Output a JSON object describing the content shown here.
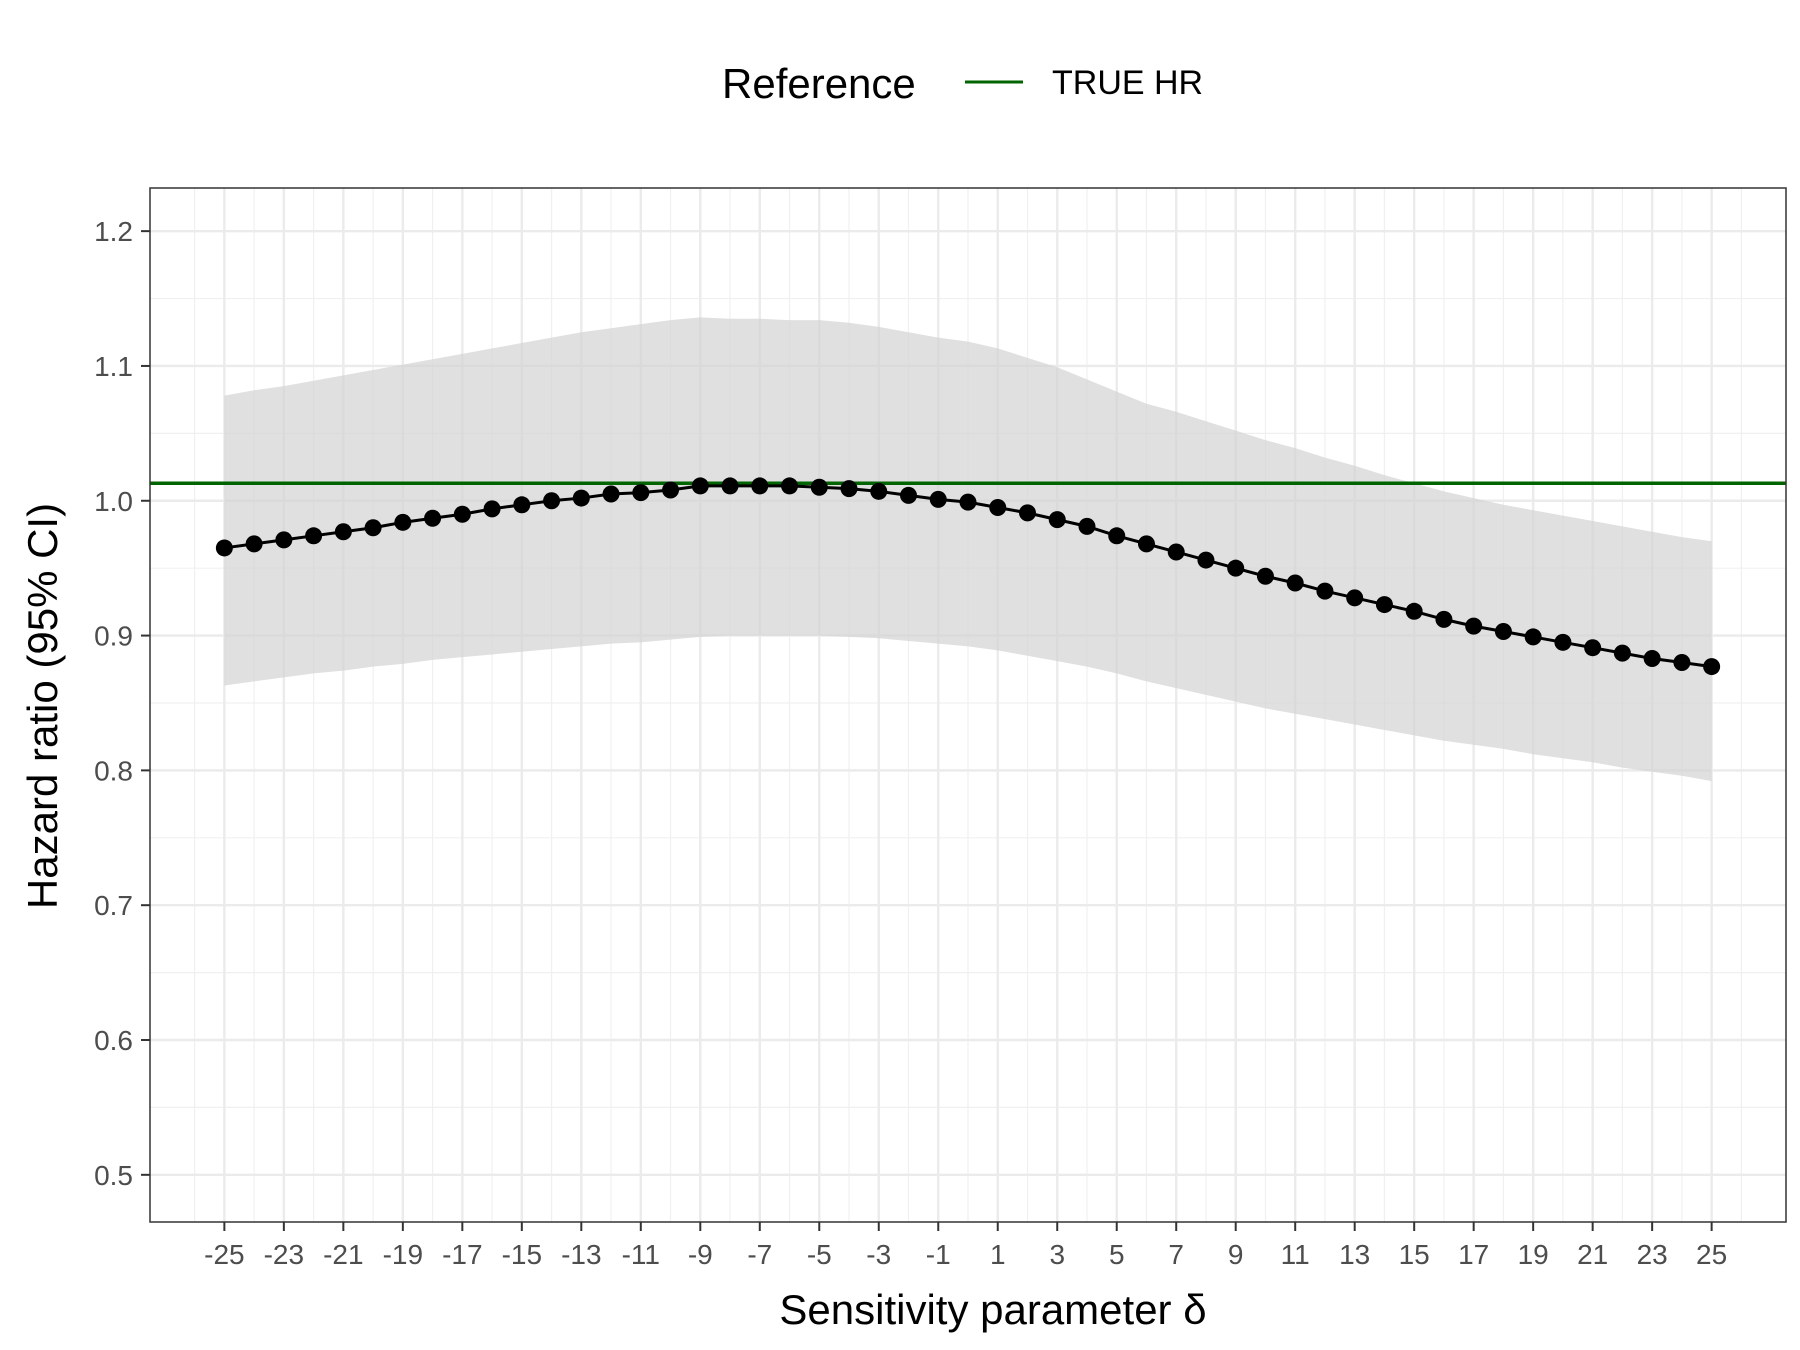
{
  "chart_data": {
    "type": "line",
    "xlabel": "Sensitivity parameter δ",
    "ylabel": "Hazard ratio (95% CI)",
    "xlim": [
      -27.5,
      27.5
    ],
    "ylim": [
      0.465,
      1.232
    ],
    "x_ticks": [
      -25,
      -23,
      -21,
      -19,
      -17,
      -15,
      -13,
      -11,
      -9,
      -7,
      -5,
      -3,
      -1,
      1,
      3,
      5,
      7,
      9,
      11,
      13,
      15,
      17,
      19,
      21,
      23,
      25
    ],
    "x_tick_labels": [
      "-25",
      "-23",
      "-21",
      "-19",
      "-17",
      "-15",
      "-13",
      "-11",
      "-9",
      "-7",
      "-5",
      "-3",
      "-1",
      "1",
      "3",
      "5",
      "7",
      "9",
      "11",
      "13",
      "15",
      "17",
      "19",
      "21",
      "23",
      "25"
    ],
    "y_ticks": [
      0.5,
      0.6,
      0.7,
      0.8,
      0.9,
      1.0,
      1.1,
      1.2
    ],
    "y_tick_labels": [
      "0.5",
      "0.6",
      "0.7",
      "0.8",
      "0.9",
      "1.0",
      "1.1",
      "1.2"
    ],
    "grid": true,
    "legend_position": "top",
    "legend_title": "Reference",
    "reference_line": {
      "name": "TRUE HR",
      "y": 1.013,
      "color": "#006400"
    },
    "series": [
      {
        "x": [
          -25,
          -24,
          -23,
          -22,
          -21,
          -20,
          -19,
          -18,
          -17,
          -16,
          -15,
          -14,
          -13,
          -12,
          -11,
          -10,
          -9,
          -8,
          -7,
          -6,
          -5,
          -4,
          -3,
          -2,
          -1,
          0,
          1,
          2,
          3,
          4,
          5,
          6,
          7,
          8,
          9,
          10,
          11,
          12,
          13,
          14,
          15,
          16,
          17,
          18,
          19,
          20,
          21,
          22,
          23,
          24,
          25
        ],
        "values": [
          0.965,
          0.968,
          0.971,
          0.974,
          0.977,
          0.98,
          0.984,
          0.987,
          0.99,
          0.994,
          0.997,
          1.0,
          1.002,
          1.005,
          1.006,
          1.008,
          1.011,
          1.011,
          1.011,
          1.011,
          1.01,
          1.009,
          1.007,
          1.004,
          1.001,
          0.999,
          0.995,
          0.991,
          0.986,
          0.981,
          0.974,
          0.968,
          0.962,
          0.956,
          0.95,
          0.944,
          0.939,
          0.933,
          0.928,
          0.923,
          0.918,
          0.912,
          0.907,
          0.903,
          0.899,
          0.895,
          0.891,
          0.887,
          0.883,
          0.88,
          0.877
        ],
        "lower": [
          0.863,
          0.866,
          0.869,
          0.872,
          0.874,
          0.877,
          0.879,
          0.882,
          0.884,
          0.886,
          0.888,
          0.89,
          0.892,
          0.894,
          0.895,
          0.897,
          0.899,
          0.9,
          0.9,
          0.9,
          0.9,
          0.899,
          0.898,
          0.896,
          0.894,
          0.892,
          0.889,
          0.885,
          0.881,
          0.877,
          0.872,
          0.866,
          0.861,
          0.856,
          0.851,
          0.846,
          0.842,
          0.838,
          0.834,
          0.83,
          0.826,
          0.822,
          0.819,
          0.816,
          0.812,
          0.809,
          0.806,
          0.802,
          0.799,
          0.796,
          0.792
        ],
        "upper": [
          1.078,
          1.082,
          1.085,
          1.089,
          1.093,
          1.097,
          1.101,
          1.105,
          1.109,
          1.113,
          1.117,
          1.121,
          1.125,
          1.128,
          1.131,
          1.134,
          1.136,
          1.135,
          1.135,
          1.134,
          1.134,
          1.132,
          1.129,
          1.125,
          1.121,
          1.118,
          1.113,
          1.106,
          1.099,
          1.09,
          1.081,
          1.072,
          1.066,
          1.059,
          1.052,
          1.045,
          1.039,
          1.032,
          1.026,
          1.019,
          1.013,
          1.007,
          1.002,
          0.997,
          0.993,
          0.989,
          0.985,
          0.981,
          0.977,
          0.973,
          0.97
        ],
        "line_color": "#000000",
        "band_color": "#d3d3d3"
      }
    ]
  }
}
